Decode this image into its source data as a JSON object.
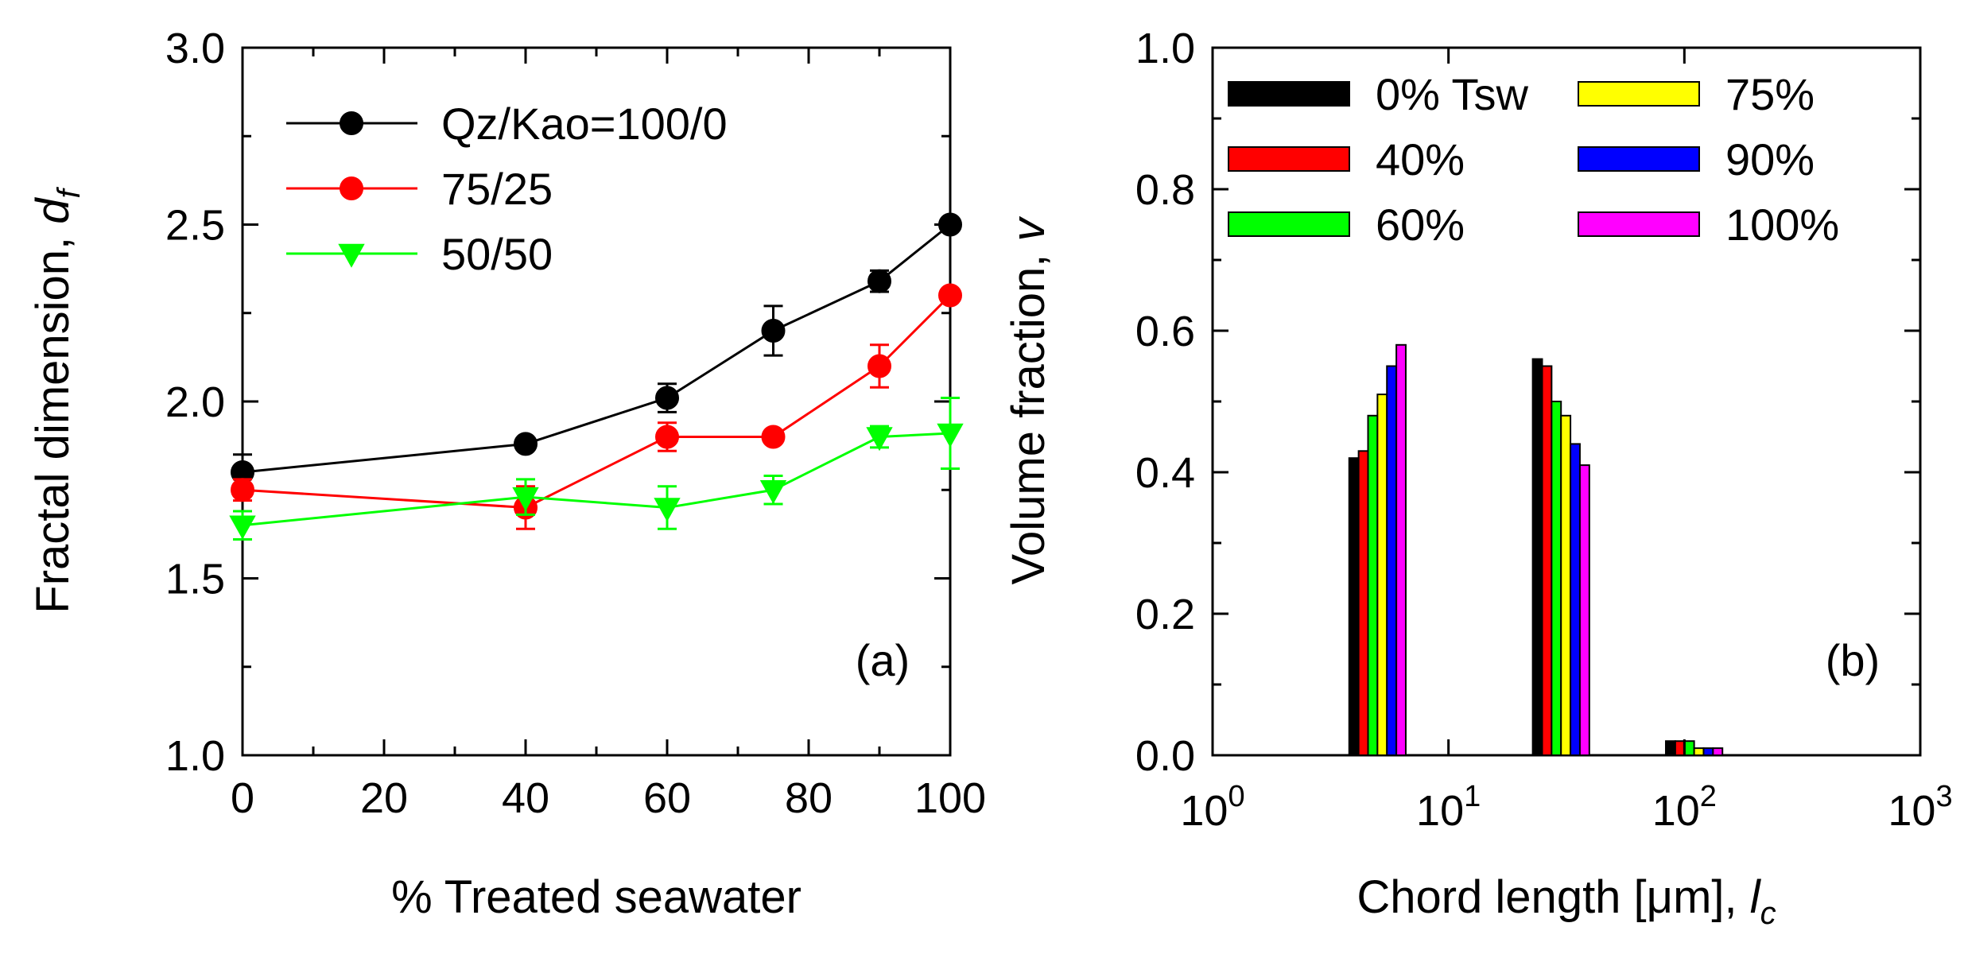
{
  "chart_data": [
    {
      "type": "line",
      "panel_tag": "(a)",
      "xlabel": "% Treated seawater",
      "ylabel": "Fractal dimension, ",
      "ylabel_symbol": "d",
      "ylabel_sub": "f",
      "xlim": [
        0,
        100
      ],
      "ylim": [
        1.0,
        3.0
      ],
      "xticks": [
        0,
        20,
        40,
        60,
        80,
        100
      ],
      "xtick_labels": [
        "0",
        "20",
        "40",
        "60",
        "80",
        "100"
      ],
      "yticks": [
        1.0,
        1.5,
        2.0,
        2.5,
        3.0
      ],
      "ytick_labels": [
        "1.0",
        "1.5",
        "2.0",
        "2.5",
        "3.0"
      ],
      "legend_position": "top-left",
      "series": [
        {
          "name": "Qz/Kao=100/0",
          "color": "#000000",
          "marker": "circle",
          "x": [
            0,
            40,
            60,
            75,
            90,
            100
          ],
          "y": [
            1.8,
            1.88,
            2.01,
            2.2,
            2.34,
            2.5
          ],
          "err": [
            0.05,
            0.01,
            0.04,
            0.07,
            0.03,
            0.01
          ]
        },
        {
          "name": "75/25",
          "color": "#ff0000",
          "marker": "circle",
          "x": [
            0,
            40,
            60,
            75,
            90,
            100
          ],
          "y": [
            1.75,
            1.7,
            1.9,
            1.9,
            2.1,
            2.3
          ],
          "err": [
            0.03,
            0.06,
            0.04,
            0.01,
            0.06,
            0.01
          ]
        },
        {
          "name": "50/50",
          "color": "#00ff00",
          "marker": "triangle-down",
          "x": [
            0,
            40,
            60,
            75,
            90,
            100
          ],
          "y": [
            1.65,
            1.73,
            1.7,
            1.75,
            1.9,
            1.91
          ],
          "err": [
            0.04,
            0.05,
            0.06,
            0.04,
            0.03,
            0.1
          ]
        }
      ]
    },
    {
      "type": "bar",
      "panel_tag": "(b)",
      "xlabel": "Chord length [",
      "xlabel_mu": "μ",
      "xlabel_tail": "m], ",
      "xlabel_symbol": "l",
      "xlabel_sub": "c",
      "ylabel": "Volume fraction, ",
      "ylabel_symbol": "v",
      "x_scale": "log",
      "xlim": [
        1,
        1000
      ],
      "ylim": [
        0.0,
        1.0
      ],
      "xticks": [
        {
          "base": "10",
          "exp": "0"
        },
        {
          "base": "10",
          "exp": "1"
        },
        {
          "base": "10",
          "exp": "2"
        },
        {
          "base": "10",
          "exp": "3"
        }
      ],
      "yticks": [
        0.0,
        0.2,
        0.4,
        0.6,
        0.8,
        1.0
      ],
      "ytick_labels": [
        "0.0",
        "0.2",
        "0.4",
        "0.6",
        "0.8",
        "1.0"
      ],
      "legend_position": "top",
      "group_centers": [
        5,
        30,
        110
      ],
      "series": [
        {
          "name": "0% Tsw",
          "color": "#000000",
          "values": [
            0.42,
            0.56,
            0.02
          ]
        },
        {
          "name": "40%",
          "color": "#ff0000",
          "values": [
            0.43,
            0.55,
            0.02
          ]
        },
        {
          "name": "60%",
          "color": "#00ff00",
          "values": [
            0.48,
            0.5,
            0.02
          ]
        },
        {
          "name": "75%",
          "color": "#ffff00",
          "values": [
            0.51,
            0.48,
            0.01
          ]
        },
        {
          "name": "90%",
          "color": "#0000ff",
          "values": [
            0.55,
            0.44,
            0.01
          ]
        },
        {
          "name": "100%",
          "color": "#ff00ff",
          "values": [
            0.58,
            0.41,
            0.01
          ]
        }
      ]
    }
  ]
}
